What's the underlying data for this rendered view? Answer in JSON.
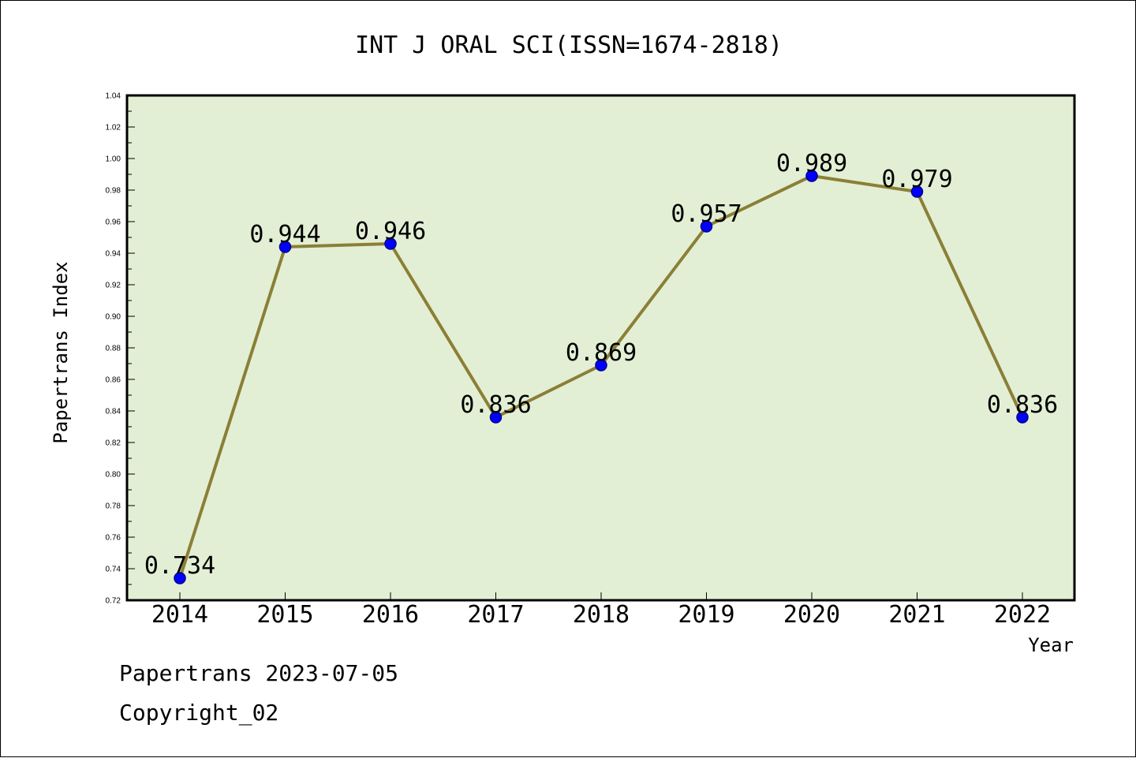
{
  "chart_data": {
    "type": "line",
    "title": "INT J ORAL SCI(ISSN=1674-2818)",
    "xlabel": "Year",
    "ylabel": "Papertrans Index",
    "categories": [
      "2014",
      "2015",
      "2016",
      "2017",
      "2018",
      "2019",
      "2020",
      "2021",
      "2022"
    ],
    "series": [
      {
        "values": [
          0.734,
          0.944,
          0.946,
          0.836,
          0.869,
          0.957,
          0.989,
          0.979,
          0.836
        ]
      }
    ],
    "data_labels": [
      "0.734",
      "0.944",
      "0.946",
      "0.836",
      "0.869",
      "0.957",
      "0.989",
      "0.979",
      "0.836"
    ],
    "ylim": [
      0.72,
      1.04
    ],
    "yticks": [
      "0.72",
      "0.74",
      "0.76",
      "0.78",
      "0.80",
      "0.82",
      "0.84",
      "0.86",
      "0.88",
      "0.90",
      "0.92",
      "0.94",
      "0.96",
      "0.98",
      "1.00",
      "1.02",
      "1.04"
    ],
    "grid": false,
    "legend": "none",
    "colors": {
      "plot_background": "#e2efd5",
      "line": "#8b7f36",
      "marker_fill": "#0000ff",
      "marker_stroke": "#00008b"
    }
  },
  "footer": {
    "line1": "Papertrans 2023-07-05",
    "line2": "Copyright_02"
  }
}
